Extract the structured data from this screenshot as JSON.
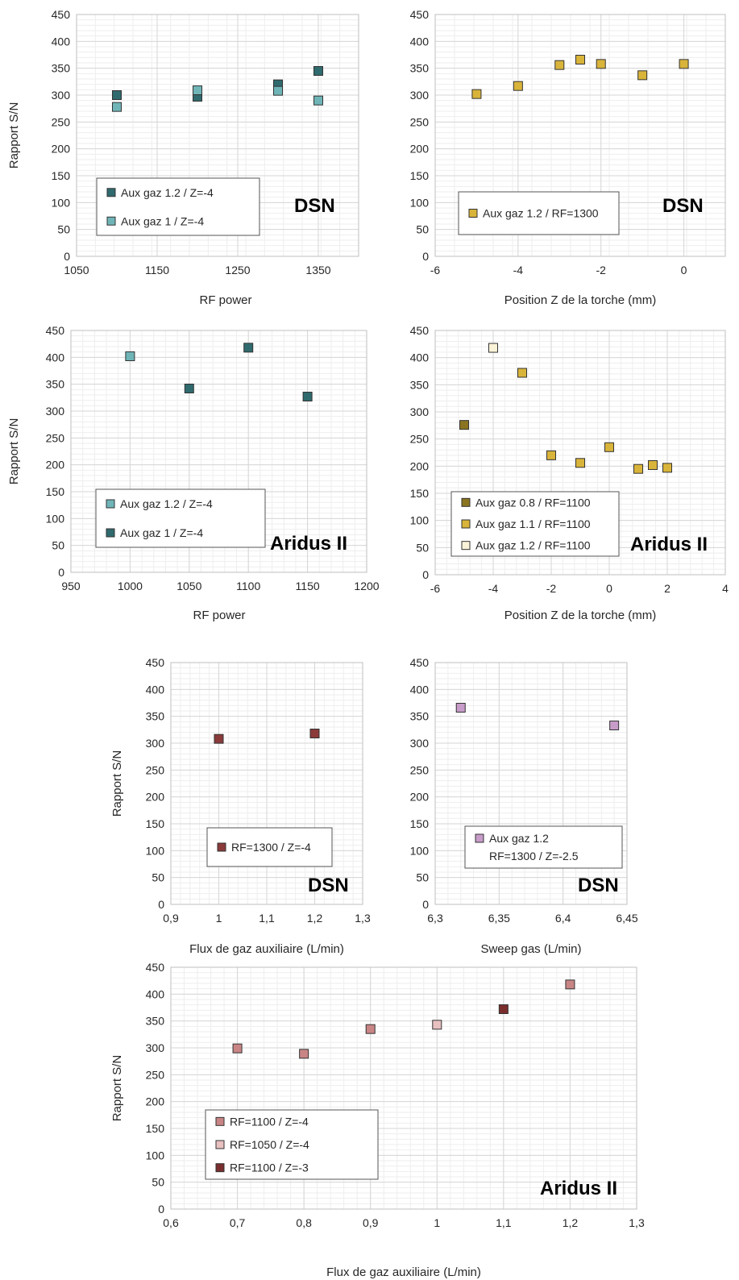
{
  "chart_data": [
    {
      "id": "p1",
      "type": "scatter",
      "xlabel": "RF power",
      "ylabel": "Rapport S/N",
      "instrument": "DSN",
      "xlim": [
        1050,
        1400
      ],
      "ylim": [
        0,
        450
      ],
      "xticks": [
        1050,
        1150,
        1250,
        1350
      ],
      "yticks": [
        0,
        50,
        100,
        150,
        200,
        250,
        300,
        350,
        400,
        450
      ],
      "grid": true,
      "legend_position": "bottom-left",
      "series": [
        {
          "name": "Aux gaz 1.2 / Z=-4",
          "color": "#2f6a6e",
          "points": [
            [
              1100,
              300
            ],
            [
              1200,
              297
            ],
            [
              1300,
              320
            ],
            [
              1350,
              345
            ]
          ]
        },
        {
          "name": "Aux gaz 1 / Z=-4",
          "color": "#6fb5b8",
          "points": [
            [
              1100,
              278
            ],
            [
              1200,
              309
            ],
            [
              1300,
              308
            ],
            [
              1350,
              290
            ]
          ]
        }
      ]
    },
    {
      "id": "p2",
      "type": "scatter",
      "xlabel": "Position Z de la torche (mm)",
      "ylabel": "",
      "instrument": "DSN",
      "xlim": [
        -6,
        1
      ],
      "ylim": [
        0,
        450
      ],
      "xticks": [
        -6,
        -4,
        -2,
        0
      ],
      "yticks": [
        0,
        50,
        100,
        150,
        200,
        250,
        300,
        350,
        400,
        450
      ],
      "grid": true,
      "legend_position": "bottom-left",
      "series": [
        {
          "name": "Aux gaz 1.2 / RF=1300",
          "color": "#d9b43a",
          "points": [
            [
              -5,
              302
            ],
            [
              -4,
              317
            ],
            [
              -3,
              356
            ],
            [
              -2.5,
              366
            ],
            [
              -2,
              358
            ],
            [
              -1,
              337
            ],
            [
              0,
              358
            ]
          ]
        }
      ]
    },
    {
      "id": "p3",
      "type": "scatter",
      "xlabel": "RF power",
      "ylabel": "Rapport S/N",
      "instrument": "Aridus II",
      "xlim": [
        950,
        1200
      ],
      "ylim": [
        0,
        450
      ],
      "xticks": [
        950,
        1000,
        1050,
        1100,
        1150,
        1200
      ],
      "yticks": [
        0,
        50,
        100,
        150,
        200,
        250,
        300,
        350,
        400,
        450
      ],
      "grid": true,
      "legend_position": "bottom-left",
      "series": [
        {
          "name": "Aux gaz 1.2 / Z=-4",
          "color": "#6fb5b8",
          "points": [
            [
              1000,
              402
            ]
          ]
        },
        {
          "name": "Aux gaz 1 / Z=-4",
          "color": "#2f6a6e",
          "points": [
            [
              1050,
              342
            ],
            [
              1100,
              418
            ],
            [
              1150,
              327
            ]
          ]
        }
      ]
    },
    {
      "id": "p4",
      "type": "scatter",
      "xlabel": "Position Z de la torche (mm)",
      "ylabel": "",
      "instrument": "Aridus II",
      "xlim": [
        -6,
        4
      ],
      "ylim": [
        0,
        450
      ],
      "xticks": [
        -6,
        -4,
        -2,
        0,
        2,
        4
      ],
      "yticks": [
        0,
        50,
        100,
        150,
        200,
        250,
        300,
        350,
        400,
        450
      ],
      "grid": true,
      "legend_position": "bottom-left",
      "series": [
        {
          "name": "Aux gaz 0.8 / RF=1100",
          "color": "#8b7420",
          "points": [
            [
              -5,
              276
            ]
          ]
        },
        {
          "name": "Aux gaz 1.1 / RF=1100",
          "color": "#d9b43a",
          "points": [
            [
              -3,
              372
            ],
            [
              -2,
              220
            ],
            [
              -1,
              206
            ],
            [
              0,
              235
            ],
            [
              1,
              195
            ],
            [
              1.5,
              202
            ],
            [
              2,
              197
            ]
          ]
        },
        {
          "name": "Aux gaz 1.2 / RF=1100",
          "color": "#fbf3d8",
          "points": [
            [
              -4,
              418
            ]
          ]
        }
      ]
    },
    {
      "id": "p5",
      "type": "scatter",
      "xlabel": "Flux de gaz auxiliaire (L/min)",
      "ylabel": "Rapport S/N",
      "instrument": "DSN",
      "xlim": [
        0.9,
        1.3
      ],
      "ylim": [
        0,
        450
      ],
      "xticks": [
        "0,9",
        "1",
        "1,1",
        "1,2",
        "1,3"
      ],
      "yticks": [
        0,
        50,
        100,
        150,
        200,
        250,
        300,
        350,
        400,
        450
      ],
      "grid": true,
      "legend_position": "bottom-left",
      "series": [
        {
          "name": "RF=1300 / Z=-4",
          "color": "#8b3a3a",
          "points": [
            [
              1.0,
              308
            ],
            [
              1.2,
              318
            ]
          ]
        }
      ]
    },
    {
      "id": "p6",
      "type": "scatter",
      "xlabel": "Sweep gas (L/min)",
      "ylabel": "",
      "instrument": "DSN",
      "xlim": [
        6.3,
        6.45
      ],
      "ylim": [
        0,
        450
      ],
      "xticks": [
        "6,3",
        "6,35",
        "6,4",
        "6,45"
      ],
      "yticks": [
        0,
        50,
        100,
        150,
        200,
        250,
        300,
        350,
        400,
        450
      ],
      "grid": true,
      "legend_position": "bottom-left",
      "series": [
        {
          "name": "Aux gaz 1.2",
          "name_line2": "RF=1300 / Z=-2.5",
          "color": "#c79cc9",
          "points": [
            [
              6.32,
              366
            ],
            [
              6.44,
              333
            ]
          ]
        }
      ]
    },
    {
      "id": "p7",
      "type": "scatter",
      "xlabel": "Flux de gaz auxiliaire (L/min)",
      "ylabel": "Rapport S/N",
      "instrument": "Aridus II",
      "xlim": [
        0.6,
        1.3
      ],
      "ylim": [
        0,
        450
      ],
      "xticks": [
        "0,6",
        "0,7",
        "0,8",
        "0,9",
        "1",
        "1,1",
        "1,2",
        "1,3"
      ],
      "yticks": [
        0,
        50,
        100,
        150,
        200,
        250,
        300,
        350,
        400,
        450
      ],
      "grid": true,
      "legend_position": "bottom-left",
      "series": [
        {
          "name": "RF=1100 / Z=-4",
          "color": "#c98585",
          "points": [
            [
              0.7,
              299
            ],
            [
              0.8,
              289
            ],
            [
              0.9,
              335
            ],
            [
              1.2,
              418
            ]
          ]
        },
        {
          "name": "RF=1050 / Z=-4",
          "color": "#e8c0c0",
          "points": [
            [
              1.0,
              343
            ]
          ]
        },
        {
          "name": "RF=1100 / Z=-3",
          "color": "#7a2e2e",
          "points": [
            [
              1.1,
              372
            ]
          ]
        }
      ]
    }
  ]
}
